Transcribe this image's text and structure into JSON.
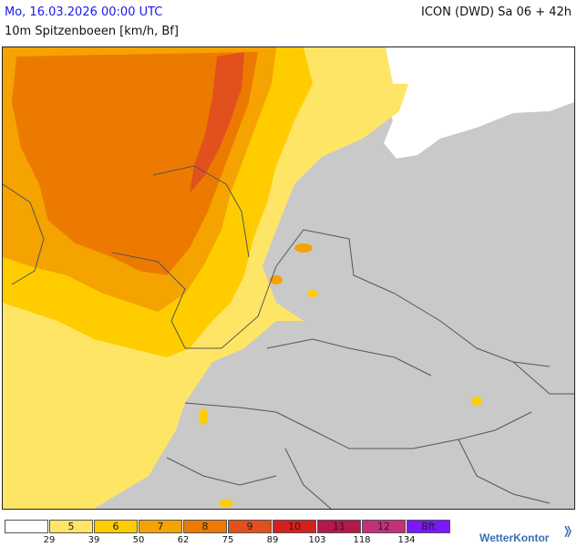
{
  "header": {
    "date_label": "Mo, 16.03.2026 00:00 UTC",
    "model_label": "ICON (DWD) Sa 06 + 42h",
    "param_label": "10m Spitzenboeen [km/h, Bf]"
  },
  "map": {
    "land_color": "#c9c9c9",
    "sea_color": "#ffffff",
    "border_color": "#555555"
  },
  "legend": {
    "bins": [
      {
        "bft": "",
        "color": "#ffffff"
      },
      {
        "bft": "5",
        "color": "#ffe566"
      },
      {
        "bft": "6",
        "color": "#ffcc00"
      },
      {
        "bft": "7",
        "color": "#f5a300"
      },
      {
        "bft": "8",
        "color": "#ec7a00"
      },
      {
        "bft": "9",
        "color": "#e2501d"
      },
      {
        "bft": "10",
        "color": "#d61f1f"
      },
      {
        "bft": "11",
        "color": "#b3184a"
      },
      {
        "bft": "12",
        "color": "#c4307a"
      },
      {
        "bft": "Bft",
        "color": "#7b18ff"
      }
    ],
    "ticks": [
      "29",
      "39",
      "50",
      "62",
      "75",
      "89",
      "103",
      "118",
      "134"
    ]
  },
  "brand": {
    "label": "WetterKontor"
  }
}
